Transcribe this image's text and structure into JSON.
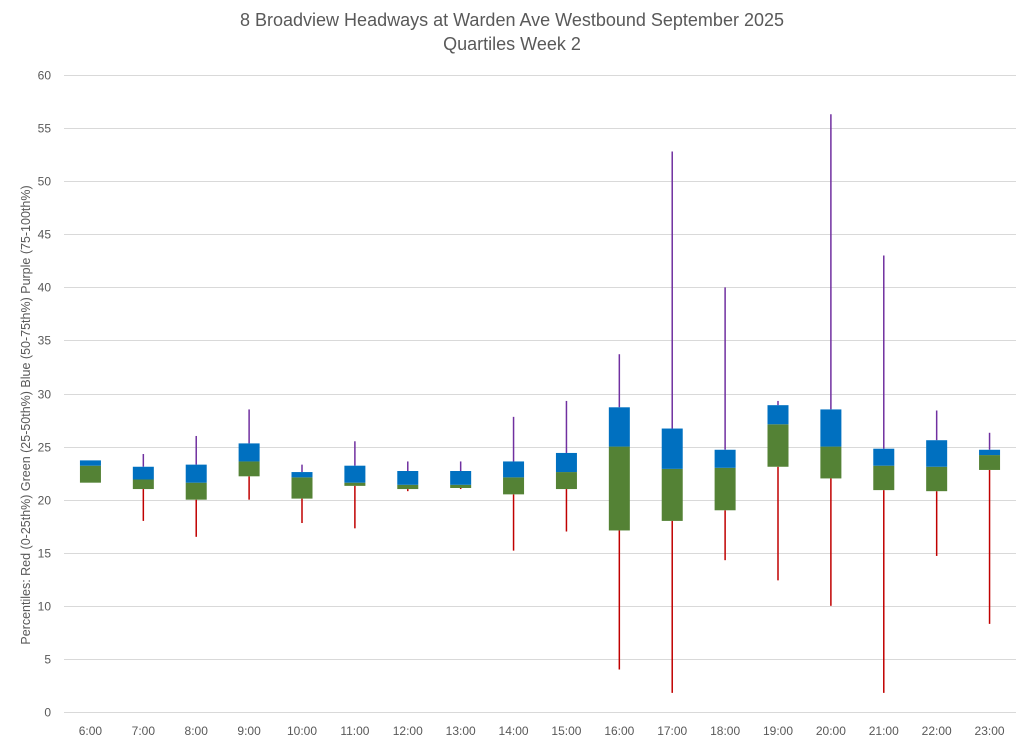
{
  "chart_data": {
    "type": "box",
    "title": "8 Broadview Headways at Warden Ave Westbound September 2025",
    "subtitle": "Quartiles Week 2",
    "ylabel": "Percentiles:  Red (0-25th%)  Green (25-50th%)  Blue (50-75th%)  Purple (75-100th%)",
    "xlabel": "",
    "ylim": [
      0,
      60
    ],
    "yticks": [
      0,
      5,
      10,
      15,
      20,
      25,
      30,
      35,
      40,
      45,
      50,
      55,
      60
    ],
    "grid": true,
    "legend": "none",
    "colors": {
      "p0_25": "#c00000",
      "p25_50": "#548235",
      "p50_75": "#0070c0",
      "p75_100": "#7030a0",
      "grid": "#d9d9d9",
      "text": "#595959"
    },
    "categories": [
      "6:00",
      "7:00",
      "8:00",
      "9:00",
      "10:00",
      "11:00",
      "12:00",
      "13:00",
      "14:00",
      "15:00",
      "16:00",
      "17:00",
      "18:00",
      "19:00",
      "20:00",
      "21:00",
      "22:00",
      "23:00"
    ],
    "min": [
      21.6,
      18.0,
      16.5,
      20.0,
      17.8,
      17.3,
      20.8,
      21.0,
      15.2,
      17.0,
      4.0,
      1.8,
      14.3,
      12.4,
      10.0,
      1.8,
      14.7,
      8.3
    ],
    "q1": [
      21.6,
      21.0,
      20.0,
      22.2,
      20.1,
      21.3,
      21.0,
      21.1,
      20.5,
      21.0,
      17.1,
      18.0,
      19.0,
      23.1,
      22.0,
      20.9,
      20.8,
      22.8
    ],
    "median": [
      23.2,
      21.9,
      21.6,
      23.6,
      22.1,
      21.6,
      21.4,
      21.4,
      22.1,
      22.6,
      25.0,
      22.9,
      23.0,
      27.1,
      25.0,
      23.2,
      23.1,
      24.2
    ],
    "q3": [
      23.7,
      23.1,
      23.3,
      25.3,
      22.6,
      23.2,
      22.7,
      22.7,
      23.6,
      24.4,
      28.7,
      26.7,
      24.7,
      28.9,
      28.5,
      24.8,
      25.6,
      24.7
    ],
    "max": [
      23.7,
      24.3,
      26.0,
      28.5,
      23.3,
      25.5,
      23.6,
      23.6,
      27.8,
      29.3,
      33.7,
      52.8,
      40.0,
      29.3,
      56.3,
      43.0,
      28.4,
      26.3
    ]
  }
}
